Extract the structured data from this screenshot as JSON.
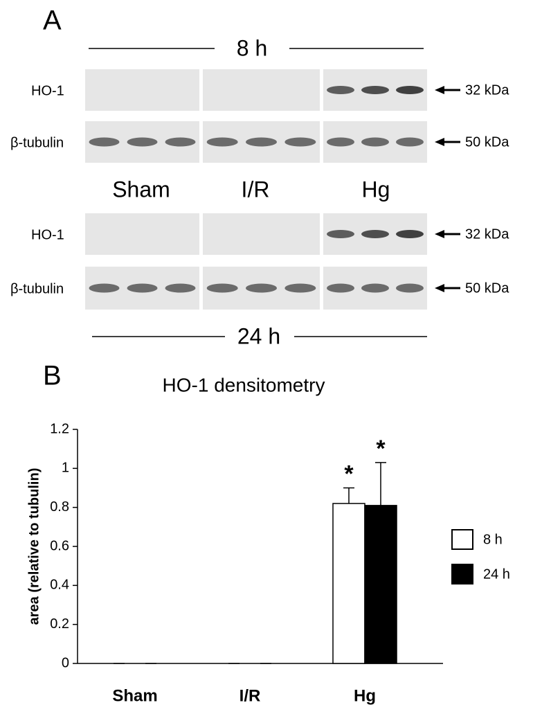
{
  "panels": [
    "A",
    "B"
  ],
  "blot": {
    "top_time": "8 h",
    "bottom_time": "24 h",
    "groups": [
      "Sham",
      "I/R",
      "Hg"
    ],
    "rows": [
      {
        "label": "HO-1",
        "size": "32 kDa"
      },
      {
        "label": "β-tubulin",
        "size": "50 kDa"
      },
      {
        "label": "HO-1",
        "size": "32 kDa"
      },
      {
        "label": "β-tubulin",
        "size": "50 kDa"
      }
    ]
  },
  "chart_data": {
    "type": "bar",
    "title": "HO-1 densitometry",
    "y_label": "area (relative to tubulin)",
    "categories": [
      "Sham",
      "I/R",
      "Hg"
    ],
    "series": [
      {
        "name": "8 h",
        "color": "#ffffff",
        "values": [
          0,
          0,
          0.82
        ],
        "errors": [
          0,
          0,
          0.08
        ]
      },
      {
        "name": "24 h",
        "color": "#000000",
        "values": [
          0,
          0,
          0.81
        ],
        "errors": [
          0,
          0,
          0.22
        ]
      }
    ],
    "annotations": [
      "*",
      "*"
    ],
    "ylim": [
      0,
      1.2
    ],
    "yticks": [
      0,
      0.2,
      0.4,
      0.6,
      0.8,
      1,
      1.2
    ],
    "legend": "right"
  }
}
